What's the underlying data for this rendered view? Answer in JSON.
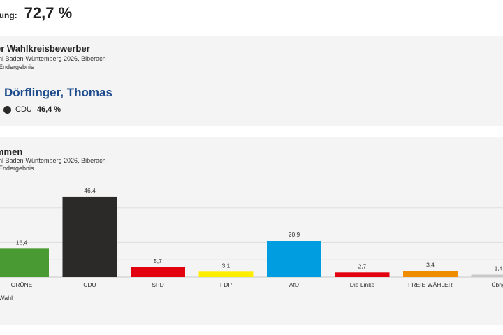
{
  "turnout": {
    "label": "igung:",
    "value": "72,7 %"
  },
  "candidate_card": {
    "title": "er Wahlkreisbewerber",
    "subtitle_line1": "hl Baden-Württemberg 2026, Biberach",
    "subtitle_line2": "Endergebnis",
    "winner_name": "Dörflinger, Thomas",
    "winner_party": "CDU",
    "winner_share": "46,4 %",
    "party_color": "#2c2a29"
  },
  "votes_card": {
    "title": "mmen",
    "subtitle_line1": "hl Baden-Württemberg 2026, Biberach",
    "subtitle_line2": "Endergebnis",
    "note": "Wahl"
  },
  "chart_data": {
    "type": "bar",
    "categories": [
      "GRÜNE",
      "CDU",
      "SPD",
      "FDP",
      "AfD",
      "Die Linke",
      "FREIE WÄHLER",
      "Übrig"
    ],
    "value_labels": [
      "16,4",
      "46,4",
      "5,7",
      "3,1",
      "20,9",
      "2,7",
      "3,4",
      "1,4"
    ],
    "values": [
      16.4,
      46.4,
      5.7,
      3.1,
      20.9,
      2.7,
      3.4,
      1.4
    ],
    "colors": [
      "#4a9a33",
      "#2c2a29",
      "#e3000f",
      "#ffed00",
      "#009ee0",
      "#e3000f",
      "#ef8c00",
      "#c8c8c8"
    ],
    "ylim": [
      0,
      50
    ],
    "grid": true
  }
}
